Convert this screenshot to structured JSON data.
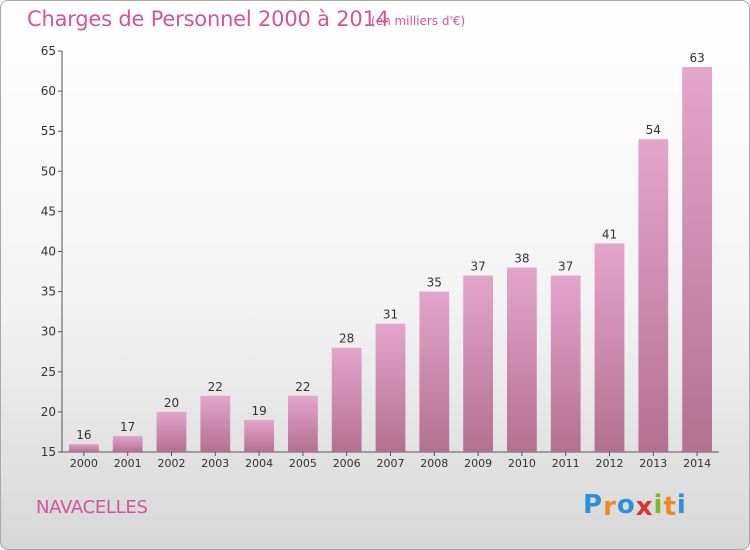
{
  "header": {
    "title": "Charges de Personnel 2000 à 2014",
    "subtitle": "(en milliers d'€)"
  },
  "footer": {
    "commune": "NAVACELLES",
    "logo": "Proxiti"
  },
  "colors": {
    "accent": "#d2559b",
    "bar_top": "#e4a5cc",
    "bar_bottom": "#b4708f",
    "logo_letters": [
      "#2e8fd6",
      "#f08a24",
      "#2e8fd6",
      "#d9342b",
      "#7cb82f",
      "#f08a24",
      "#2e8fd6"
    ]
  },
  "chart_data": {
    "type": "bar",
    "categories": [
      "2000",
      "2001",
      "2002",
      "2003",
      "2004",
      "2005",
      "2006",
      "2007",
      "2008",
      "2009",
      "2010",
      "2011",
      "2012",
      "2013",
      "2014"
    ],
    "values": [
      16,
      17,
      20,
      22,
      19,
      22,
      28,
      31,
      35,
      37,
      38,
      37,
      41,
      54,
      63
    ],
    "ylim": [
      15,
      65
    ],
    "yticks": [
      15,
      20,
      25,
      30,
      35,
      40,
      45,
      50,
      55,
      60,
      65
    ],
    "grid": false,
    "legend": "none"
  }
}
